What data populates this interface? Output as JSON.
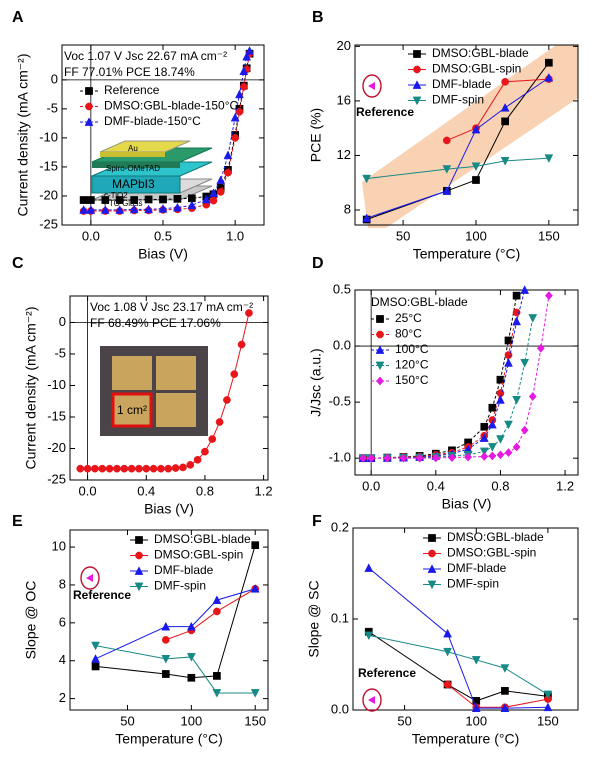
{
  "chart_data": [
    {
      "type": "line",
      "panel_label": "A",
      "xlabel": "Bias (V)",
      "ylabel": "Current density (mA cm⁻²)",
      "annotations": [
        "Voc 1.07 V   Jsc 22.67 mA cm⁻²",
        "FF 77.01%   PCE 18.74%"
      ],
      "inset_labels": [
        "Au",
        "Spiro-OMeTAD",
        "MAPbI3",
        "c-TiO2",
        "FTO Glass"
      ],
      "x": [
        -0.05,
        0,
        0.1,
        0.2,
        0.3,
        0.4,
        0.5,
        0.6,
        0.7,
        0.8,
        0.85,
        0.9,
        0.95,
        1.0,
        1.03,
        1.06,
        1.08,
        1.1
      ],
      "series": [
        {
          "name": "Reference",
          "color": "#000000",
          "marker": "square",
          "line": "dash",
          "values": [
            -20.7,
            -20.7,
            -20.7,
            -20.7,
            -20.7,
            -20.6,
            -20.6,
            -20.5,
            -20.4,
            -20.1,
            -19.7,
            -18.6,
            -15.5,
            -9.5,
            -5,
            -1,
            2,
            4.5
          ]
        },
        {
          "name": "DMSO:GBL-blade-150°C",
          "color": "#e8151b",
          "marker": "circle",
          "line": "dash",
          "values": [
            -22.6,
            -22.6,
            -22.6,
            -22.6,
            -22.5,
            -22.5,
            -22.4,
            -22.3,
            -22.1,
            -21.5,
            -20.8,
            -19.3,
            -16,
            -10,
            -5.5,
            -1.2,
            1.8,
            4.5
          ]
        },
        {
          "name": "DMF-blade-150°C",
          "color": "#1a1aeb",
          "marker": "triangle",
          "line": "dash",
          "values": [
            -22.4,
            -22.4,
            -22.4,
            -22.4,
            -22.3,
            -22.3,
            -22.2,
            -22,
            -21.6,
            -20.6,
            -19.5,
            -17.3,
            -13,
            -6.5,
            -2.5,
            1.5,
            4,
            5
          ]
        }
      ],
      "xlim": [
        -0.2,
        1.2
      ],
      "xticks": [
        {
          "value": 0,
          "label": "0.0"
        },
        0.5,
        {
          "value": 1,
          "label": "1.0"
        }
      ],
      "ylim": [
        -25,
        6
      ],
      "yticks": [
        -25,
        -20,
        -15,
        -10,
        -5,
        0
      ],
      "zero_lines": true,
      "legend": "upper left"
    },
    {
      "type": "line",
      "panel_label": "B",
      "xlabel": "Temperature (°C)",
      "ylabel": "PCE (%)",
      "reference_label": "Reference",
      "x": [
        25,
        80,
        100,
        120,
        150
      ],
      "series": [
        {
          "name": "DMSO:GBL-blade",
          "color": "#000000",
          "marker": "square",
          "values": [
            7.3,
            9.4,
            10.2,
            14.5,
            18.8
          ]
        },
        {
          "name": "DMSO:GBL-spin",
          "color": "#e8151b",
          "marker": "circle",
          "values": [
            null,
            13.1,
            14.0,
            17.4,
            17.6
          ]
        },
        {
          "name": "DMF-blade",
          "color": "#1a1aeb",
          "marker": "triangle",
          "values": [
            7.4,
            9.4,
            13.9,
            15.5,
            17.7
          ]
        },
        {
          "name": "DMF-spin",
          "color": "#178a86",
          "marker": "triangle-down",
          "values": [
            10.3,
            11.0,
            11.2,
            11.6,
            11.8
          ]
        }
      ],
      "xlim": [
        17,
        170
      ],
      "xticks": [
        50,
        100,
        150
      ],
      "ylim": [
        6.9,
        20.1
      ],
      "yticks": [
        8,
        12,
        16,
        20
      ],
      "legend": "upper right"
    },
    {
      "type": "line",
      "panel_label": "C",
      "xlabel": "Bias (V)",
      "ylabel": "Current density (mA cm⁻²)",
      "annotations": [
        "Voc 1.08 V   Jsc 23.17 mA cm⁻²",
        "FF 68.49%   PCE 17.06%"
      ],
      "inset_labels": [
        "1 cm²"
      ],
      "x": [
        -0.05,
        0,
        0.05,
        0.1,
        0.15,
        0.2,
        0.25,
        0.3,
        0.35,
        0.4,
        0.45,
        0.5,
        0.55,
        0.6,
        0.65,
        0.7,
        0.75,
        0.8,
        0.85,
        0.9,
        0.95,
        1.0,
        1.05,
        1.1
      ],
      "series": [
        {
          "name": null,
          "color": "#e8151b",
          "marker": "circle",
          "values": [
            -23.2,
            -23.2,
            -23.2,
            -23.2,
            -23.2,
            -23.2,
            -23.2,
            -23.2,
            -23.2,
            -23.2,
            -23.2,
            -23.2,
            -23.2,
            -23.1,
            -23.0,
            -22.6,
            -21.8,
            -20.5,
            -18.5,
            -15.8,
            -12.3,
            -8.2,
            -3.5,
            1.5
          ]
        }
      ],
      "xlim": [
        -0.12,
        1.23
      ],
      "xticks": [
        {
          "value": 0,
          "label": "0.0"
        },
        0.4,
        0.8,
        1.2
      ],
      "ylim": [
        -25,
        4.2
      ],
      "yticks": [
        -25,
        -20,
        -15,
        -10,
        -5,
        0
      ],
      "zero_lines": true
    },
    {
      "type": "line",
      "panel_label": "D",
      "xlabel": "Bias (V)",
      "ylabel": "J/Jsc (a.u.)",
      "legend_title": "DMSO:GBL-blade",
      "x": [
        -0.05,
        0,
        0.1,
        0.2,
        0.3,
        0.4,
        0.5,
        0.6,
        0.7,
        0.75,
        0.8,
        0.85,
        0.9,
        0.95,
        1.0,
        1.05,
        1.1
      ],
      "series": [
        {
          "name": "25°C",
          "color": "#000000",
          "marker": "square",
          "line": "dash",
          "values": [
            -1,
            -1,
            -0.995,
            -0.99,
            -0.98,
            -0.96,
            -0.93,
            -0.86,
            -0.72,
            -0.55,
            -0.3,
            0.05,
            0.45,
            null,
            null,
            null,
            null
          ]
        },
        {
          "name": "80°C",
          "color": "#e8151b",
          "marker": "circle",
          "line": "dash",
          "values": [
            -1,
            -1,
            -0.998,
            -0.99,
            -0.985,
            -0.97,
            -0.95,
            -0.9,
            -0.8,
            -0.66,
            -0.42,
            -0.08,
            0.3,
            null,
            null,
            null,
            null
          ]
        },
        {
          "name": "100°C",
          "color": "#1a1aeb",
          "marker": "triangle",
          "line": "dash",
          "values": [
            -1,
            -1,
            -0.998,
            -0.995,
            -0.99,
            -0.98,
            -0.96,
            -0.92,
            -0.82,
            -0.7,
            -0.48,
            -0.15,
            0.22,
            0.5,
            null,
            null,
            null
          ]
        },
        {
          "name": "120°C",
          "color": "#178a86",
          "marker": "triangle-down",
          "line": "dash",
          "values": [
            -1,
            -1,
            -0.999,
            -0.998,
            -0.995,
            -0.99,
            -0.98,
            -0.97,
            -0.94,
            -0.9,
            -0.83,
            -0.7,
            -0.48,
            -0.15,
            0.25,
            null,
            null
          ]
        },
        {
          "name": "150°C",
          "color": "#e619e0",
          "marker": "diamond",
          "line": "dash",
          "values": [
            -1,
            -1,
            -1,
            -1,
            -1,
            -0.998,
            -0.995,
            -0.99,
            -0.985,
            -0.98,
            -0.97,
            -0.95,
            -0.9,
            -0.75,
            -0.45,
            -0.02,
            0.45
          ]
        }
      ],
      "xlim": [
        -0.1,
        1.28
      ],
      "xticks": [
        {
          "value": 0,
          "label": "0.0"
        },
        0.4,
        0.8,
        1.2
      ],
      "ylim": [
        -1.15,
        0.5
      ],
      "yticks": [
        {
          "value": -1,
          "label": "-1.0"
        },
        -0.5,
        {
          "value": 0,
          "label": "0.0"
        },
        0.5
      ],
      "zero_lines": true,
      "legend": "upper left"
    },
    {
      "type": "line",
      "panel_label": "E",
      "xlabel": "Temperature (°C)",
      "ylabel": "Slope @ OC",
      "reference_label": "Reference",
      "x": [
        25,
        80,
        100,
        120,
        150
      ],
      "series": [
        {
          "name": "DMSO:GBL-blade",
          "color": "#000000",
          "marker": "square",
          "values": [
            3.7,
            3.3,
            3.1,
            3.2,
            10.1
          ]
        },
        {
          "name": "DMSO:GBL-spin",
          "color": "#e8151b",
          "marker": "circle",
          "values": [
            null,
            5.1,
            5.6,
            6.6,
            7.8
          ]
        },
        {
          "name": "DMF-blade",
          "color": "#1a1aeb",
          "marker": "triangle",
          "values": [
            4.1,
            5.8,
            5.8,
            7.2,
            7.8
          ]
        },
        {
          "name": "DMF-spin",
          "color": "#178a86",
          "marker": "triangle-down",
          "values": [
            4.8,
            4.1,
            4.2,
            2.3,
            2.3
          ]
        }
      ],
      "xlim": [
        5,
        160
      ],
      "xticks": [
        50,
        100,
        150
      ],
      "ylim": [
        1.4,
        10.9
      ],
      "yticks": [
        2,
        4,
        6,
        8,
        10
      ],
      "legend": "upper right"
    },
    {
      "type": "line",
      "panel_label": "F",
      "xlabel": "Temperature (°C)",
      "ylabel": "Slope @ SC",
      "reference_label": "Reference",
      "x": [
        25,
        80,
        100,
        120,
        150
      ],
      "series": [
        {
          "name": "DMSO:GBL-blade",
          "color": "#000000",
          "marker": "square",
          "values": [
            0.086,
            0.028,
            0.01,
            0.021,
            0.015
          ]
        },
        {
          "name": "DMSO:GBL-spin",
          "color": "#e8151b",
          "marker": "circle",
          "values": [
            null,
            0.028,
            0.003,
            0.003,
            0.012
          ]
        },
        {
          "name": "DMF-blade",
          "color": "#1a1aeb",
          "marker": "triangle",
          "values": [
            0.156,
            0.084,
            0.002,
            0.002,
            0.003
          ]
        },
        {
          "name": "DMF-spin",
          "color": "#178a86",
          "marker": "triangle-down",
          "values": [
            0.082,
            0.064,
            0.055,
            0.046,
            0.017
          ]
        }
      ],
      "xlim": [
        14,
        171
      ],
      "xticks": [
        50,
        100,
        150
      ],
      "ylim": [
        0,
        0.2
      ],
      "yticks": [
        {
          "value": 0,
          "label": "0.0"
        },
        0.1,
        0.2
      ],
      "legend": "upper right"
    }
  ]
}
